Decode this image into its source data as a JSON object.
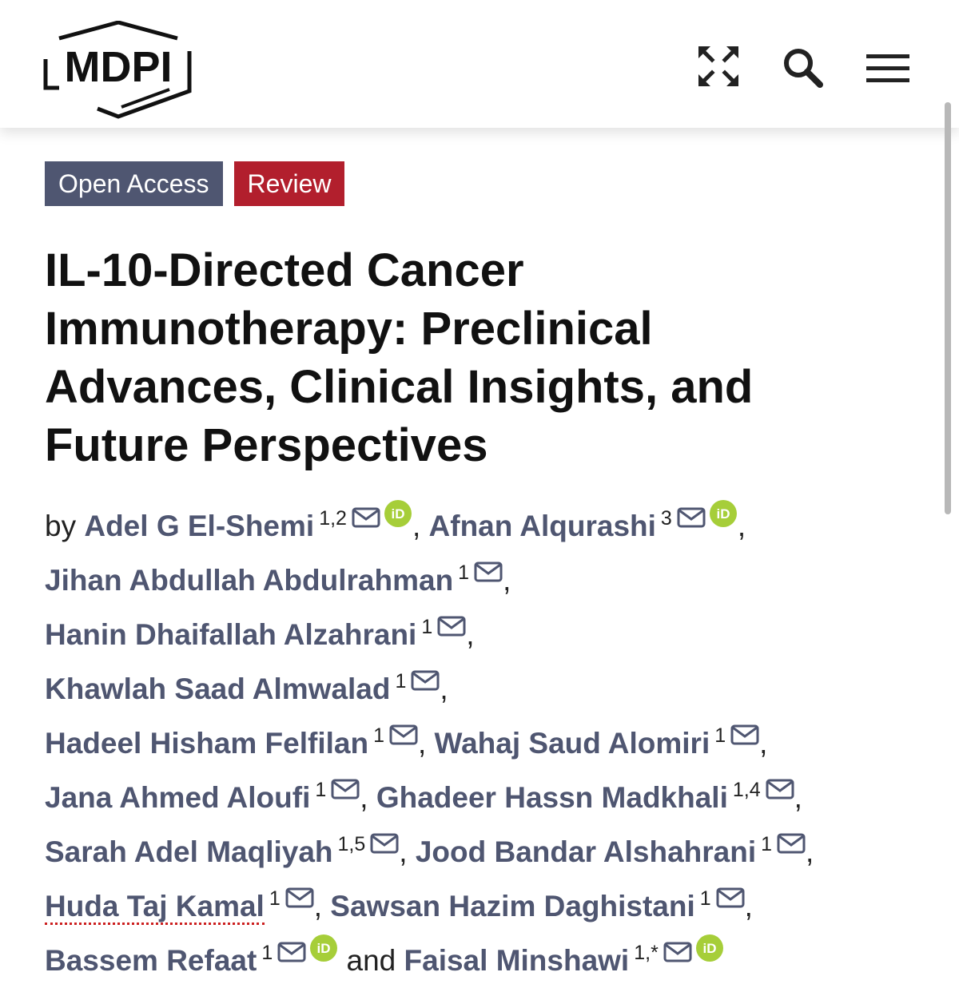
{
  "header": {
    "logo_text": "MDPI",
    "icons": [
      "expand-icon",
      "search-icon",
      "menu-icon"
    ]
  },
  "badges": {
    "open_access": "Open Access",
    "review": "Review"
  },
  "article": {
    "title_lines": [
      "IL-10-Directed Cancer",
      "Immunotherapy: Preclinical",
      "Advances, Clinical Insights, and",
      "Future Perspectives"
    ]
  },
  "byline": {
    "by": "by",
    "and": "and",
    "comma": ",",
    "authors": [
      {
        "name": "Adel G El-Shemi",
        "aff": "1,2"
      },
      {
        "name": "Afnan Alqurashi",
        "aff": "3"
      },
      {
        "name": "Jihan Abdullah Abdulrahman",
        "aff": "1"
      },
      {
        "name": "Hanin Dhaifallah Alzahrani",
        "aff": "1"
      },
      {
        "name": "Khawlah Saad Almwalad",
        "aff": "1"
      },
      {
        "name": "Hadeel Hisham Felfilan",
        "aff": "1"
      },
      {
        "name": "Wahaj Saud Alomiri",
        "aff": "1"
      },
      {
        "name": "Jana Ahmed Aloufi",
        "aff": "1"
      },
      {
        "name": "Ghadeer Hassn Madkhali",
        "aff": "1,4"
      },
      {
        "name": "Sarah Adel Maqliyah",
        "aff": "1,5"
      },
      {
        "name": "Jood Bandar Alshahrani",
        "aff": "1"
      },
      {
        "name": "Huda Taj Kamal",
        "aff": "1"
      },
      {
        "name": "Sawsan Hazim Daghistani",
        "aff": "1"
      },
      {
        "name": "Bassem Refaat",
        "aff": "1"
      },
      {
        "name": "Faisal Minshawi",
        "aff": "1,*"
      }
    ]
  },
  "colors": {
    "open_access_bg": "#4f5671",
    "review_bg": "#b21f2d",
    "author_link": "#4f5671",
    "orcid": "#a6ce39"
  }
}
